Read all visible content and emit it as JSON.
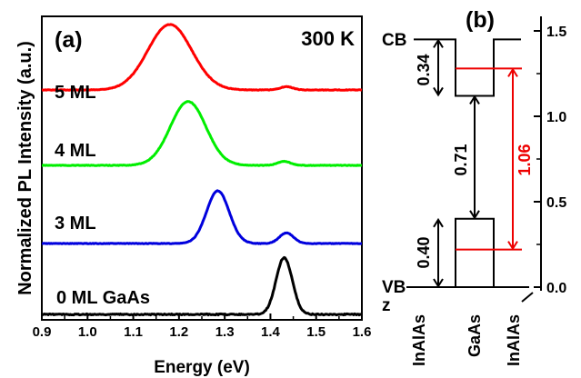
{
  "chart_data": [
    {
      "panel": "(a)",
      "type": "line",
      "annotation": "300 K",
      "xlabel": "Energy (eV)",
      "ylabel": "Normalized PL Intensity (a.u.)",
      "xlim": [
        0.9,
        1.6
      ],
      "xticks": [
        "0.9",
        "1.0",
        "1.1",
        "1.2",
        "1.3",
        "1.4",
        "1.5",
        "1.6"
      ],
      "y_axis_tick_labels": false,
      "series": [
        {
          "name": "5 ML",
          "color": "#ff0000",
          "offset": 3,
          "peaks": [
            [
              1.18,
              0.068,
              1.0
            ],
            [
              1.435,
              0.02,
              0.05
            ]
          ]
        },
        {
          "name": "4 ML",
          "color": "#00ee00",
          "offset": 2,
          "peaks": [
            [
              1.22,
              0.055,
              0.95
            ],
            [
              1.43,
              0.02,
              0.06
            ]
          ]
        },
        {
          "name": "3 ML",
          "color": "#0000dd",
          "offset": 1,
          "peaks": [
            [
              1.285,
              0.035,
              0.95
            ],
            [
              1.435,
              0.022,
              0.19
            ]
          ]
        },
        {
          "name": "0 ML GaAs",
          "color": "#000000",
          "offset": 0,
          "peaks": [
            [
              1.43,
              0.025,
              0.92
            ]
          ]
        }
      ]
    },
    {
      "panel": "(b)",
      "type": "diagram",
      "ylim": [
        0.0,
        1.5
      ],
      "yticks": [
        "0.0",
        "0.5",
        "1.0",
        "1.5"
      ],
      "band_labels": {
        "cb": "CB",
        "vb": "VB",
        "z": "z"
      },
      "bottom_labels": [
        "InAlAs",
        "GaAs",
        "InAlAs"
      ],
      "levels": {
        "cb_barrier": 1.45,
        "cb_well": 1.12,
        "vb_well": 0.4,
        "vb_barrier": 0.0,
        "e1": 1.28,
        "h1": 0.22
      },
      "offsets": {
        "cb": "0.34",
        "vb": "0.40",
        "gap": "0.71",
        "transition": "1.06"
      },
      "colors": {
        "line": "#000000",
        "accent": "#ee0000"
      }
    }
  ]
}
